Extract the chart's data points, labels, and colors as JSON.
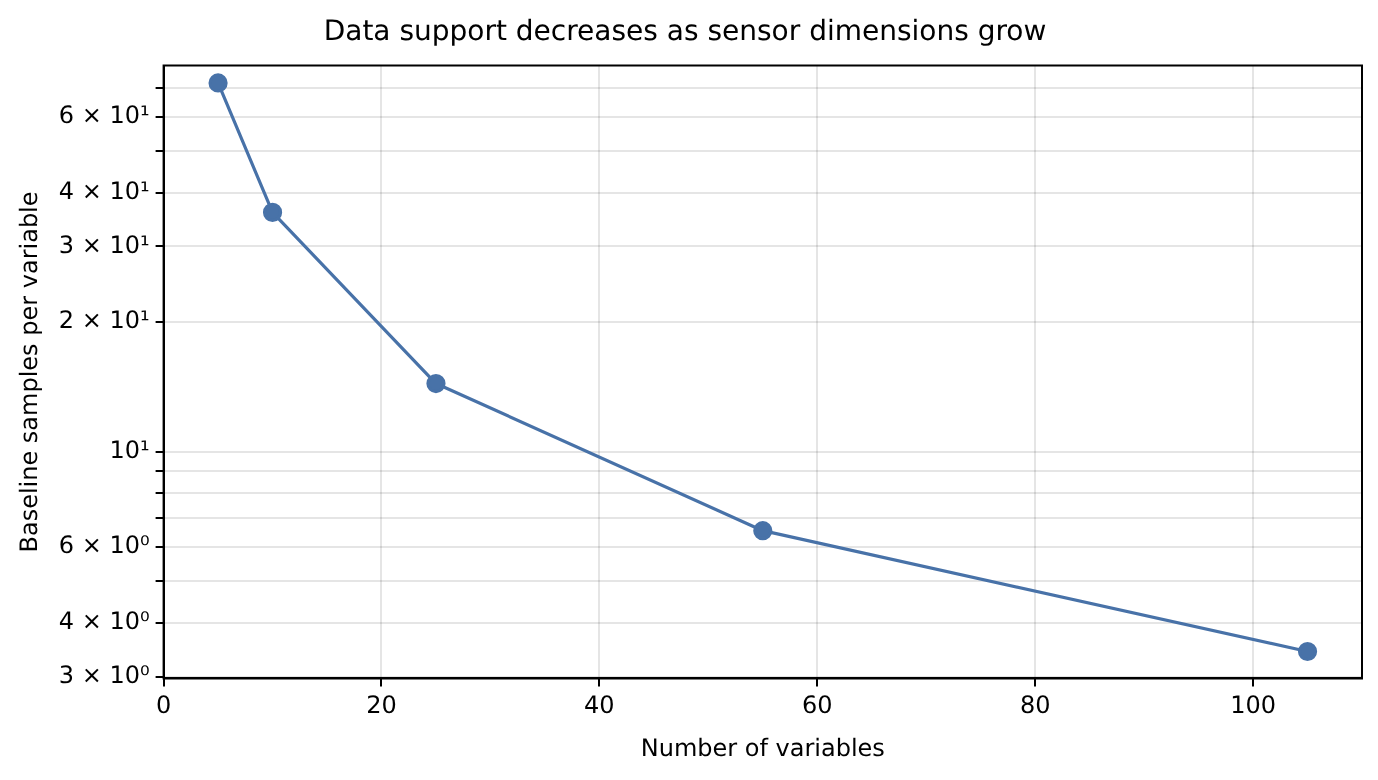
{
  "chart_data": {
    "type": "line",
    "title": "Data support decreases as sensor dimensions grow",
    "xlabel": "Number of variables",
    "ylabel": "Baseline samples per variable",
    "x": [
      5,
      10,
      25,
      55,
      105
    ],
    "series": [
      {
        "color": "#4872a8",
        "values": [
          72,
          36,
          14.4,
          6.55,
          3.43
        ]
      }
    ],
    "xlim": [
      0,
      110
    ],
    "xticks": [
      0,
      20,
      40,
      60,
      80,
      100
    ],
    "ylim": [
      2.97,
      79
    ],
    "yticks": [
      {
        "value": 3,
        "label": "3 × 10⁰"
      },
      {
        "value": 4,
        "label": "4 × 10⁰"
      },
      {
        "value": 5,
        "label": null
      },
      {
        "value": 6,
        "label": "6 × 10⁰"
      },
      {
        "value": 7,
        "label": null
      },
      {
        "value": 8,
        "label": null
      },
      {
        "value": 9,
        "label": null
      },
      {
        "value": 10,
        "label": "10¹"
      },
      {
        "value": 20,
        "label": "2 × 10¹"
      },
      {
        "value": 30,
        "label": "3 × 10¹"
      },
      {
        "value": 40,
        "label": "4 × 10¹"
      },
      {
        "value": 50,
        "label": null
      },
      {
        "value": 60,
        "label": "6 × 10¹"
      },
      {
        "value": 70,
        "label": null
      }
    ],
    "log": "y",
    "grid": true,
    "marker": "circle",
    "line_style": "solid"
  }
}
